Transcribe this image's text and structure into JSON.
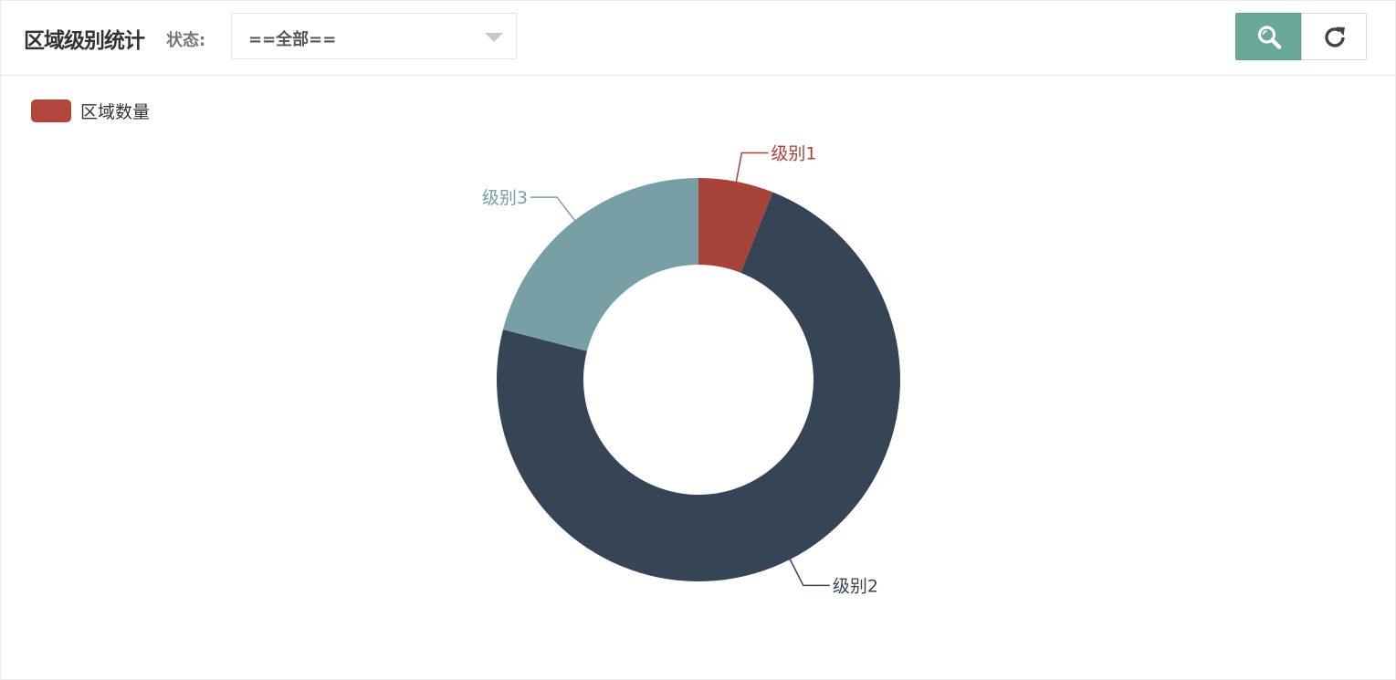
{
  "header": {
    "title": "区域级别统计",
    "status_label": "状态:",
    "status_select": {
      "value": "==全部=="
    },
    "search_button_icon": "search-icon",
    "refresh_button_icon": "refresh-icon"
  },
  "chart_data": {
    "type": "pie",
    "donut": true,
    "legend": {
      "position": "top-left",
      "entries": [
        "区域数量"
      ]
    },
    "series": [
      {
        "name": "区域数量",
        "data": [
          {
            "name": "级别1",
            "value": 6,
            "color": "#a8433a"
          },
          {
            "name": "级别2",
            "value": 73,
            "color": "#364555"
          },
          {
            "name": "级别3",
            "value": 21,
            "color": "#789fa5"
          }
        ]
      }
    ]
  },
  "colors": {
    "accent": "#6aa897",
    "legend": "#b0463c"
  }
}
